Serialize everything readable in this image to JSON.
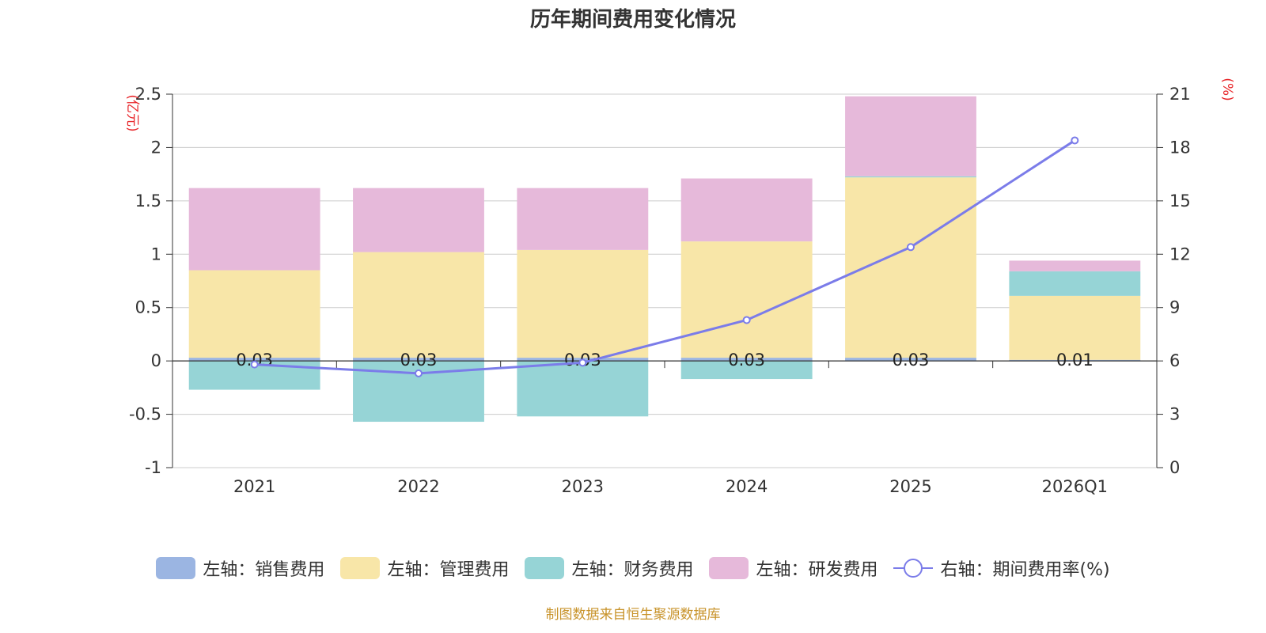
{
  "title": "历年期间费用变化情况",
  "source_note": "制图数据来自恒生聚源数据库",
  "chart_data": {
    "type": "bar",
    "title": "历年期间费用变化情况",
    "categories": [
      "2021",
      "2022",
      "2023",
      "2024",
      "2025",
      "2026Q1"
    ],
    "left_axis": {
      "unit_label": "(亿元)",
      "ylim": [
        -1,
        2.5
      ],
      "ticks": [
        "-1",
        "-0.5",
        "0",
        "0.5",
        "1",
        "1.5",
        "2",
        "2.5"
      ]
    },
    "right_axis": {
      "unit_label": "(%)",
      "ylim": [
        0,
        21
      ],
      "ticks": [
        "0",
        "3",
        "6",
        "9",
        "12",
        "15",
        "18",
        "21"
      ]
    },
    "series": [
      {
        "name": "左轴：销售费用",
        "type": "bar",
        "axis": "left",
        "color": "#9bb5e2",
        "values": [
          0.03,
          0.03,
          0.03,
          0.03,
          0.03,
          0.01
        ]
      },
      {
        "name": "左轴：管理费用",
        "type": "bar",
        "axis": "left",
        "color": "#f8e6a8",
        "values": [
          0.82,
          0.99,
          1.01,
          1.09,
          1.69,
          0.6
        ]
      },
      {
        "name": "左轴：财务费用",
        "type": "bar",
        "axis": "left",
        "color": "#96d4d6",
        "values": [
          -0.27,
          -0.57,
          -0.52,
          -0.17,
          0.01,
          0.23
        ]
      },
      {
        "name": "左轴：研发费用",
        "type": "bar",
        "axis": "left",
        "color": "#e6b9da",
        "values": [
          0.77,
          0.6,
          0.58,
          0.59,
          0.75,
          0.1
        ]
      },
      {
        "name": "右轴：期间费用率(%)",
        "type": "line",
        "axis": "right",
        "color": "#7b7ce9",
        "values": [
          5.8,
          5.3,
          5.9,
          8.3,
          12.4,
          18.4
        ]
      }
    ],
    "data_labels": [
      "0.03",
      "0.03",
      "0.03",
      "0.03",
      "0.03",
      "0.01"
    ]
  }
}
